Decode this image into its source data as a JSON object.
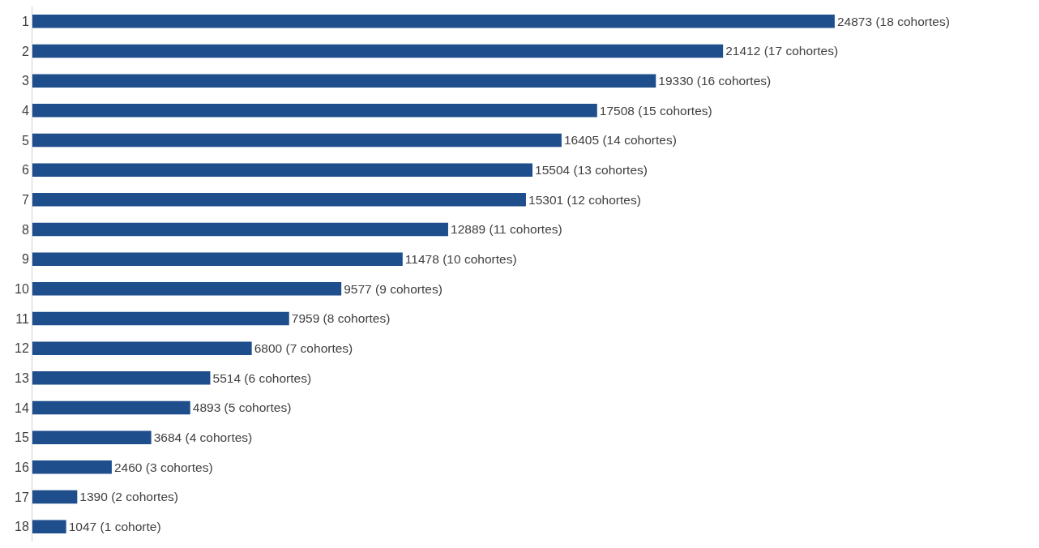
{
  "chart_data": {
    "type": "bar",
    "orientation": "horizontal",
    "tick_labels": "y",
    "categories": [
      "1",
      "2",
      "3",
      "4",
      "5",
      "6",
      "7",
      "8",
      "9",
      "10",
      "11",
      "12",
      "13",
      "14",
      "15",
      "16",
      "17",
      "18"
    ],
    "values": [
      24873,
      21412,
      19330,
      17508,
      16405,
      15504,
      15301,
      12889,
      11478,
      9577,
      7959,
      6800,
      5514,
      4893,
      3684,
      2460,
      1390,
      1047
    ],
    "value_labels": [
      "24873 (18 cohortes)",
      "21412 (17 cohortes)",
      "19330 (16 cohortes)",
      "17508 (15 cohortes)",
      "16405 (14 cohortes)",
      "15504 (13 cohortes)",
      "15301 (12 cohortes)",
      "12889 (11 cohortes)",
      "11478 (10 cohortes)",
      "9577 (9 cohortes)",
      "7959 (8 cohortes)",
      "6800 (7 cohortes)",
      "5514 (6 cohortes)",
      "4893 (5 cohortes)",
      "3684 (4 cohortes)",
      "2460 (3 cohortes)",
      "1390 (2 cohortes)",
      "1047 (1 cohorte)"
    ],
    "color": "#1f4e8c"
  }
}
